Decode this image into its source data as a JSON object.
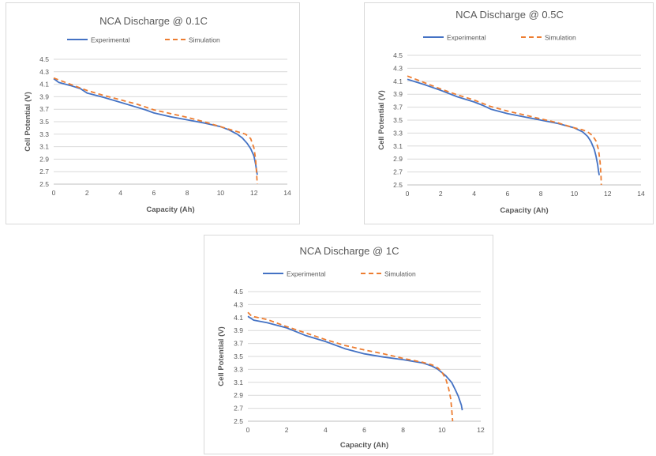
{
  "chart_data": [
    {
      "type": "line",
      "title": "NCA Discharge @ 0.1C",
      "xlabel": "Capacity (Ah)",
      "ylabel": "Cell Potential (V)",
      "xlim": [
        0,
        14
      ],
      "ylim": [
        2.5,
        4.5
      ],
      "x_ticks": [
        "0",
        "2",
        "4",
        "6",
        "8",
        "10",
        "12",
        "14"
      ],
      "y_ticks": [
        "2.5",
        "2.7",
        "2.9",
        "3.1",
        "3.3",
        "3.5",
        "3.7",
        "3.9",
        "4.1",
        "4.3",
        "4.5"
      ],
      "grid": "horizontal",
      "legend_position": "top",
      "series": [
        {
          "name": "Experimental",
          "color": "#4472C4",
          "style": "solid",
          "points": [
            [
              0,
              4.19
            ],
            [
              0.3,
              4.13
            ],
            [
              1,
              4.08
            ],
            [
              1.6,
              4.03
            ],
            [
              2,
              3.96
            ],
            [
              3,
              3.89
            ],
            [
              4,
              3.81
            ],
            [
              5,
              3.73
            ],
            [
              5.5,
              3.69
            ],
            [
              6,
              3.64
            ],
            [
              7,
              3.58
            ],
            [
              8,
              3.53
            ],
            [
              9,
              3.48
            ],
            [
              10,
              3.42
            ],
            [
              10.5,
              3.37
            ],
            [
              11,
              3.3
            ],
            [
              11.3,
              3.24
            ],
            [
              11.6,
              3.15
            ],
            [
              11.8,
              3.07
            ],
            [
              12,
              2.95
            ],
            [
              12.1,
              2.82
            ],
            [
              12.15,
              2.73
            ],
            [
              12.2,
              2.65
            ]
          ]
        },
        {
          "name": "Simulation",
          "color": "#ED7D31",
          "style": "dashed",
          "points": [
            [
              0,
              4.2
            ],
            [
              1,
              4.1
            ],
            [
              2,
              4.0
            ],
            [
              3,
              3.92
            ],
            [
              4,
              3.85
            ],
            [
              5,
              3.78
            ],
            [
              6,
              3.69
            ],
            [
              7,
              3.63
            ],
            [
              8,
              3.57
            ],
            [
              9,
              3.5
            ],
            [
              10,
              3.42
            ],
            [
              10.5,
              3.38
            ],
            [
              11,
              3.34
            ],
            [
              11.5,
              3.3
            ],
            [
              11.8,
              3.23
            ],
            [
              12,
              3.08
            ],
            [
              12.1,
              2.9
            ],
            [
              12.15,
              2.7
            ],
            [
              12.2,
              2.5
            ]
          ]
        }
      ]
    },
    {
      "type": "line",
      "title": "NCA Discharge @ 0.5C",
      "xlabel": "Capacity (Ah)",
      "ylabel": "Cell Potential (V)",
      "xlim": [
        0,
        14
      ],
      "ylim": [
        2.5,
        4.5
      ],
      "x_ticks": [
        "0",
        "2",
        "4",
        "6",
        "8",
        "10",
        "12",
        "14"
      ],
      "y_ticks": [
        "2.5",
        "2.7",
        "2.9",
        "3.1",
        "3.3",
        "3.5",
        "3.7",
        "3.9",
        "4.1",
        "4.3",
        "4.5"
      ],
      "grid": "horizontal",
      "legend_position": "top",
      "series": [
        {
          "name": "Experimental",
          "color": "#4472C4",
          "style": "solid",
          "points": [
            [
              0,
              4.13
            ],
            [
              0.5,
              4.09
            ],
            [
              1,
              4.05
            ],
            [
              2,
              3.96
            ],
            [
              3,
              3.86
            ],
            [
              4,
              3.78
            ],
            [
              4.5,
              3.73
            ],
            [
              5,
              3.67
            ],
            [
              6,
              3.6
            ],
            [
              7,
              3.55
            ],
            [
              8,
              3.5
            ],
            [
              9,
              3.45
            ],
            [
              10,
              3.38
            ],
            [
              10.5,
              3.32
            ],
            [
              10.8,
              3.25
            ],
            [
              11,
              3.17
            ],
            [
              11.2,
              3.05
            ],
            [
              11.3,
              2.95
            ],
            [
              11.4,
              2.82
            ],
            [
              11.45,
              2.72
            ],
            [
              11.5,
              2.65
            ]
          ]
        },
        {
          "name": "Simulation",
          "color": "#ED7D31",
          "style": "dashed",
          "points": [
            [
              0,
              4.18
            ],
            [
              1,
              4.08
            ],
            [
              2,
              3.98
            ],
            [
              3,
              3.89
            ],
            [
              4,
              3.81
            ],
            [
              5,
              3.71
            ],
            [
              6,
              3.64
            ],
            [
              7,
              3.58
            ],
            [
              8,
              3.52
            ],
            [
              9,
              3.46
            ],
            [
              10,
              3.38
            ],
            [
              10.5,
              3.35
            ],
            [
              10.8,
              3.32
            ],
            [
              11.1,
              3.26
            ],
            [
              11.3,
              3.18
            ],
            [
              11.45,
              3.05
            ],
            [
              11.55,
              2.85
            ],
            [
              11.6,
              2.65
            ],
            [
              11.62,
              2.5
            ]
          ]
        }
      ]
    },
    {
      "type": "line",
      "title": "NCA Discharge @ 1C",
      "xlabel": "Capacity (Ah)",
      "ylabel": "Cell Potential (V)",
      "xlim": [
        0,
        12
      ],
      "ylim": [
        2.5,
        4.5
      ],
      "x_ticks": [
        "0",
        "2",
        "4",
        "6",
        "8",
        "10",
        "12"
      ],
      "y_ticks": [
        "2.5",
        "2.7",
        "2.9",
        "3.1",
        "3.3",
        "3.5",
        "3.7",
        "3.9",
        "4.1",
        "4.3",
        "4.5"
      ],
      "grid": "horizontal",
      "legend_position": "top",
      "series": [
        {
          "name": "Experimental",
          "color": "#4472C4",
          "style": "solid",
          "points": [
            [
              0,
              4.12
            ],
            [
              0.3,
              4.06
            ],
            [
              1,
              4.02
            ],
            [
              2,
              3.94
            ],
            [
              3,
              3.82
            ],
            [
              4,
              3.73
            ],
            [
              5,
              3.62
            ],
            [
              6,
              3.54
            ],
            [
              7,
              3.49
            ],
            [
              8,
              3.45
            ],
            [
              9,
              3.4
            ],
            [
              9.5,
              3.35
            ],
            [
              9.8,
              3.3
            ],
            [
              10.2,
              3.2
            ],
            [
              10.5,
              3.1
            ],
            [
              10.7,
              2.98
            ],
            [
              10.85,
              2.88
            ],
            [
              11,
              2.75
            ],
            [
              11.05,
              2.67
            ]
          ]
        },
        {
          "name": "Simulation",
          "color": "#ED7D31",
          "style": "dashed",
          "points": [
            [
              0,
              4.18
            ],
            [
              0.2,
              4.12
            ],
            [
              1,
              4.07
            ],
            [
              2,
              3.96
            ],
            [
              3,
              3.86
            ],
            [
              4,
              3.76
            ],
            [
              5,
              3.67
            ],
            [
              6,
              3.6
            ],
            [
              7,
              3.54
            ],
            [
              8,
              3.47
            ],
            [
              9,
              3.41
            ],
            [
              9.5,
              3.37
            ],
            [
              9.8,
              3.32
            ],
            [
              10,
              3.26
            ],
            [
              10.2,
              3.15
            ],
            [
              10.35,
              3.0
            ],
            [
              10.45,
              2.85
            ],
            [
              10.5,
              2.7
            ],
            [
              10.55,
              2.5
            ]
          ]
        }
      ]
    }
  ]
}
